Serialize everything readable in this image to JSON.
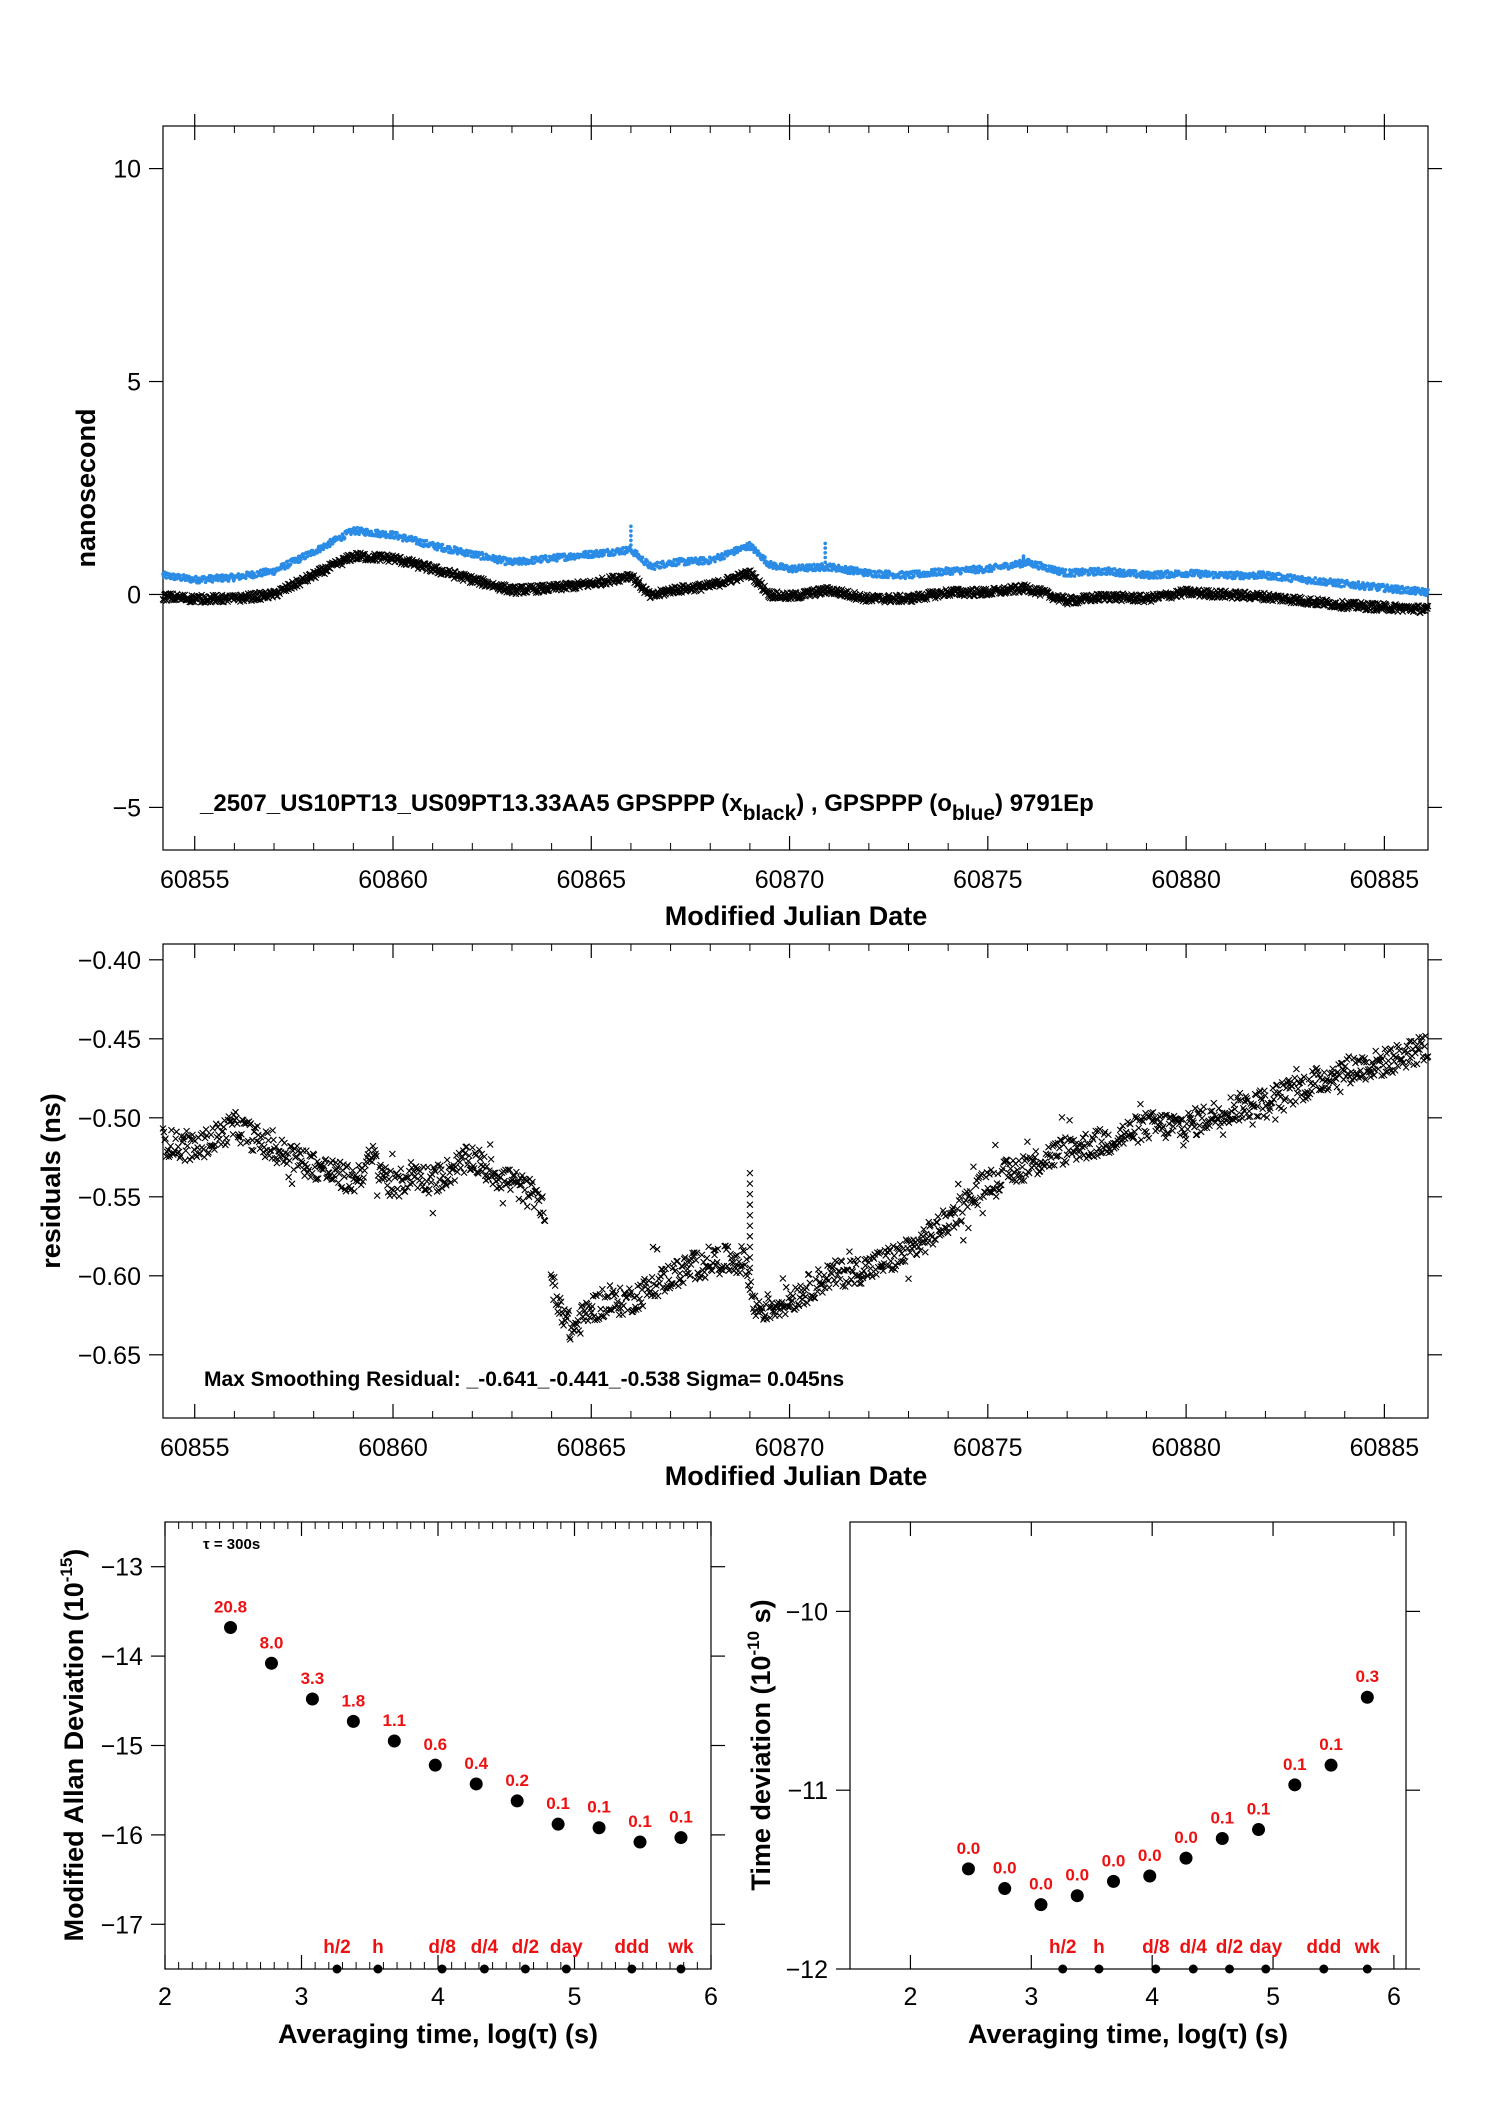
{
  "colors": {
    "black_series": "#000000",
    "blue_series": "#2b8ce6",
    "label_red": "#ee1111",
    "axis": "#000000"
  },
  "top_panel": {
    "ylabel": "nanosecond",
    "xlabel": "Modified Julian Date",
    "annotation_main": "_2507_US10PT13_US09PT13.33AA5     GPSPPP (x",
    "annotation_sub1": "black",
    "annotation_mid": ") ,  GPSPPP (o",
    "annotation_sub2": "blue",
    "annotation_end": ")  9791Ep"
  },
  "mid_panel": {
    "ylabel": "residuals (ns)",
    "xlabel": "Modified Julian Date",
    "annotation": "Max Smoothing Residual: _-0.641_-0.441_-0.538  Sigma= 0.045ns"
  },
  "allan_panel": {
    "ylabel_main": "Modified Allan Deviation (10",
    "ylabel_exp": "-15",
    "ylabel_end": ")",
    "xlabel": "Averaging time, log(τ) (s)",
    "tau_note": "τ = 300s"
  },
  "tdev_panel": {
    "ylabel_main": "Time deviation (10",
    "ylabel_exp": "-10",
    "ylabel_end": " s)",
    "xlabel": "Averaging time, log(τ) (s)"
  },
  "chart_data": [
    {
      "type": "scatter",
      "id": "top",
      "xlabel": "Modified Julian Date",
      "ylabel": "nanosecond",
      "xlim": [
        60854.2,
        60886.1
      ],
      "ylim": [
        -6,
        11
      ],
      "xticks": [
        60855,
        60860,
        60865,
        60870,
        60875,
        60880,
        60885
      ],
      "yticks": [
        -5,
        0,
        5,
        10
      ],
      "series": [
        {
          "color": "#000000",
          "marker": "x",
          "x": [
            60854.2,
            60855.0,
            60856.0,
            60857.0,
            60858.0,
            60859.0,
            60860.0,
            60861.0,
            60862.0,
            60863.0,
            60864.0,
            60865.0,
            60866.0,
            60866.5,
            60867.0,
            60868.0,
            60869.0,
            60869.5,
            60870.0,
            60871.0,
            60872.0,
            60873.0,
            60874.0,
            60875.0,
            60876.0,
            60877.0,
            60878.0,
            60879.0,
            60880.0,
            60881.0,
            60882.0,
            60883.0,
            60884.0,
            60885.0,
            60886.1
          ],
          "y": [
            -0.05,
            -0.1,
            -0.1,
            0.0,
            0.45,
            0.9,
            0.85,
            0.6,
            0.35,
            0.1,
            0.15,
            0.25,
            0.45,
            -0.05,
            0.1,
            0.2,
            0.5,
            0.0,
            -0.05,
            0.1,
            -0.1,
            -0.1,
            0.05,
            0.05,
            0.15,
            -0.15,
            -0.05,
            -0.1,
            0.05,
            0.0,
            -0.05,
            -0.15,
            -0.25,
            -0.3,
            -0.35
          ]
        },
        {
          "color": "#2b8ce6",
          "marker": "o",
          "x": [
            60854.2,
            60855.0,
            60856.0,
            60857.0,
            60858.0,
            60859.0,
            60860.0,
            60861.0,
            60862.0,
            60863.0,
            60864.0,
            60865.0,
            60866.0,
            60866.5,
            60867.0,
            60868.0,
            60869.0,
            60869.5,
            60870.0,
            60871.0,
            60872.0,
            60873.0,
            60874.0,
            60875.0,
            60876.0,
            60877.0,
            60878.0,
            60879.0,
            60880.0,
            60881.0,
            60882.0,
            60883.0,
            60884.0,
            60885.0,
            60886.1
          ],
          "y": [
            0.45,
            0.35,
            0.4,
            0.55,
            1.0,
            1.5,
            1.4,
            1.15,
            0.95,
            0.75,
            0.85,
            0.95,
            1.05,
            0.65,
            0.75,
            0.8,
            1.15,
            0.7,
            0.6,
            0.65,
            0.5,
            0.45,
            0.55,
            0.6,
            0.75,
            0.5,
            0.55,
            0.45,
            0.5,
            0.45,
            0.45,
            0.35,
            0.25,
            0.15,
            0.05
          ]
        }
      ]
    },
    {
      "type": "scatter",
      "id": "residuals",
      "xlabel": "Modified Julian Date",
      "ylabel": "residuals (ns)",
      "xlim": [
        60854.2,
        60886.1
      ],
      "ylim": [
        -0.69,
        -0.39
      ],
      "xticks": [
        60855,
        60860,
        60865,
        60870,
        60875,
        60880,
        60885
      ],
      "yticks": [
        -0.4,
        -0.45,
        -0.5,
        -0.55,
        -0.6,
        -0.65
      ],
      "series": [
        {
          "color": "#000000",
          "marker": "x",
          "x": [
            60854.2,
            60855.0,
            60856.0,
            60857.0,
            60858.0,
            60859.0,
            60859.5,
            60860.0,
            60860.5,
            60861.0,
            60862.0,
            60862.5,
            60863.0,
            60863.8,
            60864.0,
            60864.5,
            60865.0,
            60866.0,
            60867.0,
            60868.0,
            60868.9,
            60869.1,
            60869.5,
            60870.0,
            60871.0,
            60872.0,
            60873.0,
            60874.0,
            60875.0,
            60876.0,
            60877.0,
            60878.0,
            60879.0,
            60880.0,
            60881.0,
            60882.0,
            60883.0,
            60884.0,
            60885.0,
            60886.1
          ],
          "y": [
            -0.515,
            -0.52,
            -0.505,
            -0.52,
            -0.53,
            -0.54,
            -0.525,
            -0.545,
            -0.535,
            -0.54,
            -0.525,
            -0.535,
            -0.54,
            -0.555,
            -0.605,
            -0.635,
            -0.62,
            -0.615,
            -0.6,
            -0.59,
            -0.59,
            -0.62,
            -0.62,
            -0.615,
            -0.6,
            -0.595,
            -0.585,
            -0.565,
            -0.54,
            -0.53,
            -0.52,
            -0.515,
            -0.505,
            -0.505,
            -0.495,
            -0.49,
            -0.48,
            -0.47,
            -0.465,
            -0.455
          ]
        }
      ]
    },
    {
      "type": "scatter",
      "id": "mdev",
      "xlabel": "Averaging time, log(τ) (s)",
      "ylabel": "Modified Allan Deviation (10^-15)",
      "xlim": [
        2,
        6
      ],
      "ylim": [
        -17.5,
        -12.5
      ],
      "xticks": [
        2,
        3,
        4,
        5,
        6
      ],
      "yticks": [
        -13,
        -14,
        -15,
        -16,
        -17
      ],
      "points": [
        {
          "x": 2.48,
          "y": -13.68,
          "label": "20.8"
        },
        {
          "x": 2.78,
          "y": -14.08,
          "label": "8.0"
        },
        {
          "x": 3.08,
          "y": -14.48,
          "label": "3.3"
        },
        {
          "x": 3.38,
          "y": -14.73,
          "label": "1.8"
        },
        {
          "x": 3.68,
          "y": -14.95,
          "label": "1.1"
        },
        {
          "x": 3.98,
          "y": -15.22,
          "label": "0.6"
        },
        {
          "x": 4.28,
          "y": -15.43,
          "label": "0.4"
        },
        {
          "x": 4.58,
          "y": -15.62,
          "label": "0.2"
        },
        {
          "x": 4.88,
          "y": -15.88,
          "label": "0.1"
        },
        {
          "x": 5.18,
          "y": -15.92,
          "label": "0.1"
        },
        {
          "x": 5.48,
          "y": -16.08,
          "label": "0.1"
        },
        {
          "x": 5.78,
          "y": -16.03,
          "label": "0.1"
        }
      ],
      "markers": [
        {
          "x": 3.26,
          "label": "h/2"
        },
        {
          "x": 3.56,
          "label": "h"
        },
        {
          "x": 4.03,
          "label": "d/8"
        },
        {
          "x": 4.34,
          "label": "d/4"
        },
        {
          "x": 4.64,
          "label": "d/2"
        },
        {
          "x": 4.94,
          "label": "day"
        },
        {
          "x": 5.42,
          "label": "ddd"
        },
        {
          "x": 5.78,
          "label": "wk"
        }
      ]
    },
    {
      "type": "scatter",
      "id": "tdev",
      "xlabel": "Averaging time, log(τ) (s)",
      "ylabel": "Time deviation (10^-10 s)",
      "xlim": [
        1.5,
        6.1
      ],
      "ylim": [
        -12,
        -9.5
      ],
      "xticks": [
        2,
        3,
        4,
        5,
        6
      ],
      "yticks": [
        -10,
        -11,
        -12
      ],
      "points": [
        {
          "x": 2.48,
          "y": -11.44,
          "label": "0.0"
        },
        {
          "x": 2.78,
          "y": -11.55,
          "label": "0.0"
        },
        {
          "x": 3.08,
          "y": -11.64,
          "label": "0.0"
        },
        {
          "x": 3.38,
          "y": -11.59,
          "label": "0.0"
        },
        {
          "x": 3.68,
          "y": -11.51,
          "label": "0.0"
        },
        {
          "x": 3.98,
          "y": -11.48,
          "label": "0.0"
        },
        {
          "x": 4.28,
          "y": -11.38,
          "label": "0.0"
        },
        {
          "x": 4.58,
          "y": -11.27,
          "label": "0.1"
        },
        {
          "x": 4.88,
          "y": -11.22,
          "label": "0.1"
        },
        {
          "x": 5.18,
          "y": -10.97,
          "label": "0.1"
        },
        {
          "x": 5.48,
          "y": -10.86,
          "label": "0.1"
        },
        {
          "x": 5.78,
          "y": -10.48,
          "label": "0.3"
        }
      ],
      "markers": [
        {
          "x": 3.26,
          "label": "h/2"
        },
        {
          "x": 3.56,
          "label": "h"
        },
        {
          "x": 4.03,
          "label": "d/8"
        },
        {
          "x": 4.34,
          "label": "d/4"
        },
        {
          "x": 4.64,
          "label": "d/2"
        },
        {
          "x": 4.94,
          "label": "day"
        },
        {
          "x": 5.42,
          "label": "ddd"
        },
        {
          "x": 5.78,
          "label": "wk"
        }
      ]
    }
  ]
}
